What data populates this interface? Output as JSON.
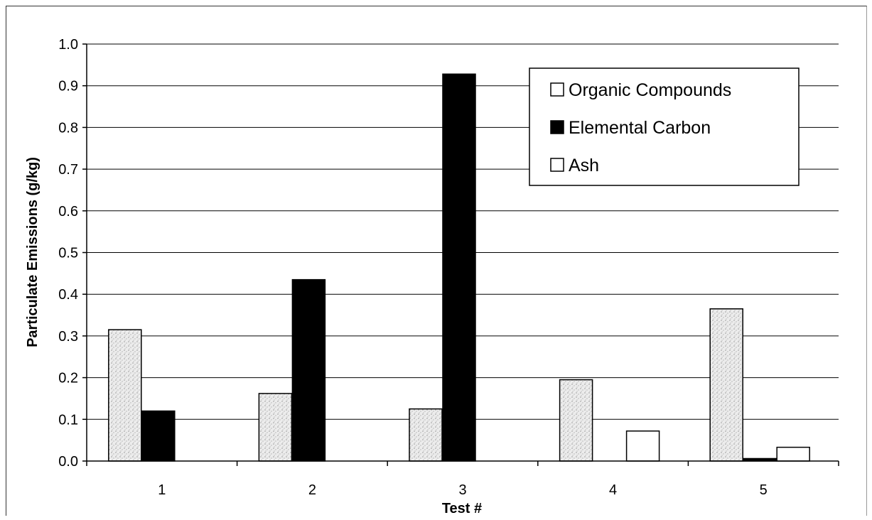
{
  "chart_data": {
    "type": "bar",
    "title": "",
    "xlabel": "Test #",
    "ylabel": "Particulate Emissions (g/kg)",
    "categories": [
      "1",
      "2",
      "3",
      "4",
      "5"
    ],
    "series": [
      {
        "name": "Organic Compounds",
        "values": [
          0.315,
          0.162,
          0.125,
          0.195,
          0.365
        ],
        "color": "#e8e8e8",
        "pattern": "stipple"
      },
      {
        "name": "Elemental Carbon",
        "values": [
          0.12,
          0.435,
          0.928,
          0.0,
          0.006
        ],
        "color": "#000000",
        "pattern": "solid"
      },
      {
        "name": "Ash",
        "values": [
          0.0,
          0.0,
          0.0,
          0.072,
          0.033
        ],
        "color": "#ffffff",
        "pattern": "solid"
      }
    ],
    "ylim": [
      0,
      1.0
    ],
    "yticks": [
      "0.0",
      "0.1",
      "0.2",
      "0.3",
      "0.4",
      "0.5",
      "0.6",
      "0.7",
      "0.8",
      "0.9",
      "1.0"
    ],
    "grid": true,
    "legend_position": "top-right"
  }
}
